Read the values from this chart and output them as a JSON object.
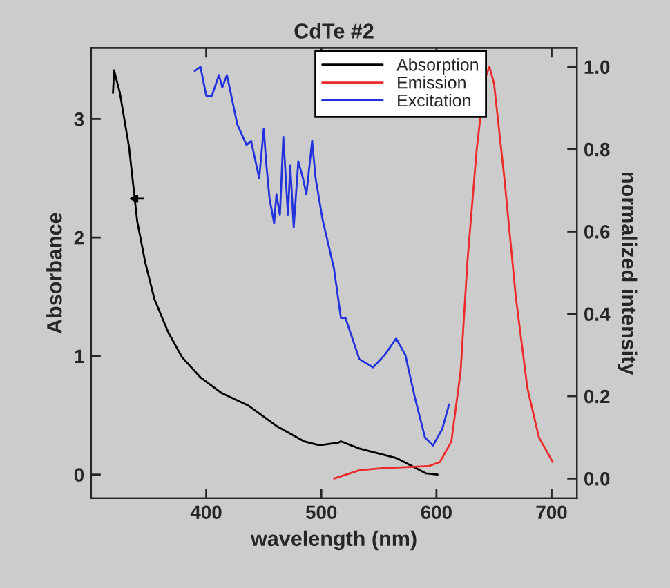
{
  "chart_data": {
    "type": "line",
    "title": "CdTe #2",
    "xlabel": "wavelength (nm)",
    "ylabel": "Absorbance",
    "y2label": "normalized intensity",
    "xlim": [
      300,
      722
    ],
    "xticks": [
      400,
      500,
      600,
      700
    ],
    "ylim": [
      -0.2,
      3.6
    ],
    "yticks": [
      0,
      1,
      2,
      3
    ],
    "y2lim": [
      -0.048,
      1.046
    ],
    "y2ticks": [
      {
        "value": 0,
        "label": "0.0"
      },
      {
        "value": 0.2,
        "label": "0.2"
      },
      {
        "value": 0.4,
        "label": "0.4"
      },
      {
        "value": 0.6,
        "label": "0.6"
      },
      {
        "value": 0.8,
        "label": "0.8"
      },
      {
        "value": 1,
        "label": "1.0"
      }
    ],
    "legend": "top right",
    "series": [
      {
        "name": "Absorption",
        "color": "#000000",
        "x": [
          319,
          320,
          325,
          333,
          340,
          347,
          355,
          367,
          379,
          395,
          413,
          437,
          461,
          485,
          497,
          501,
          515,
          517,
          533,
          541,
          565,
          581,
          591,
          601
        ],
        "values": [
          3.22,
          3.41,
          3.22,
          2.76,
          2.14,
          1.79,
          1.48,
          1.2,
          0.99,
          0.82,
          0.69,
          0.58,
          0.41,
          0.28,
          0.25,
          0.25,
          0.27,
          0.28,
          0.22,
          0.2,
          0.14,
          0.06,
          0.01,
          0.0
        ]
      },
      {
        "name": "Emission",
        "color": "#ee2b2b",
        "axis": "y2",
        "x": [
          511,
          533,
          553,
          593,
          603,
          613,
          621,
          627,
          635,
          642,
          646,
          650,
          659,
          669,
          679,
          689,
          701
        ],
        "values": [
          0.0,
          0.02,
          0.025,
          0.03,
          0.04,
          0.09,
          0.26,
          0.53,
          0.8,
          0.97,
          1.0,
          0.96,
          0.73,
          0.44,
          0.22,
          0.1,
          0.04
        ]
      },
      {
        "name": "Excitation",
        "color": "#2233dd",
        "axis": "y2",
        "x": [
          390,
          395,
          400,
          405,
          411,
          414,
          418,
          421,
          427,
          435,
          439,
          446,
          450,
          452,
          455,
          459,
          461,
          464,
          467,
          471,
          473,
          476,
          480,
          484,
          487,
          492,
          495,
          501,
          511,
          517,
          521,
          533,
          545,
          555,
          565,
          573,
          581,
          590,
          597,
          605,
          611
        ],
        "values": [
          0.99,
          1.0,
          0.93,
          0.93,
          0.98,
          0.95,
          0.98,
          0.94,
          0.86,
          0.81,
          0.82,
          0.73,
          0.85,
          0.77,
          0.68,
          0.62,
          0.69,
          0.64,
          0.83,
          0.64,
          0.76,
          0.61,
          0.77,
          0.73,
          0.69,
          0.82,
          0.73,
          0.63,
          0.51,
          0.39,
          0.39,
          0.29,
          0.27,
          0.3,
          0.34,
          0.3,
          0.2,
          0.1,
          0.08,
          0.12,
          0.18
        ]
      }
    ]
  }
}
